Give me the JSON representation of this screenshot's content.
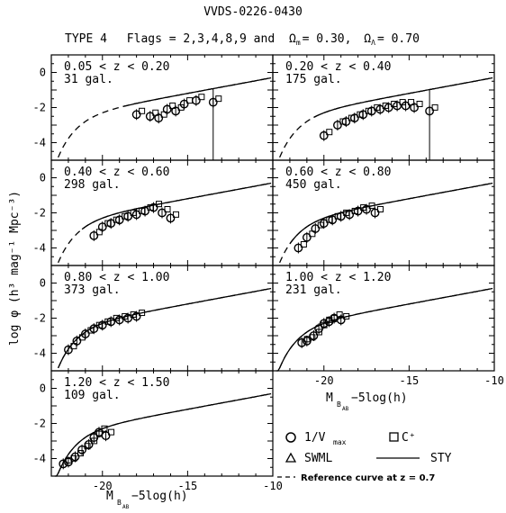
{
  "title": "VVDS-0226-0430",
  "subtitle": {
    "type_label": "TYPE 4",
    "flags_label": "Flags = 2,3,4,8,9  and",
    "omega_m_sym": "Ω",
    "omega_m_sub": "m",
    "omega_m_val": "= 0.30,",
    "omega_l_sym": "Ω",
    "omega_l_sub": "Λ",
    "omega_l_val": "= 0.70"
  },
  "ylabel": "log φ  (h³ mag⁻¹ Mpc⁻³)",
  "xlabel_left": {
    "main": "M",
    "sub1": "B",
    "sub2": "AB",
    "rest": "−5log(h)"
  },
  "xlabel_right": {
    "main": "M",
    "sub1": "B",
    "sub2": "AB",
    "rest": "−5log(h)"
  },
  "legend": {
    "vmax_label": "1/V",
    "vmax_sub": "max",
    "cplus_label": "C⁺",
    "swml_label": "SWML",
    "sty_label": "STY",
    "reference_label": "Reference curve at z = 0.7"
  },
  "chart_data": {
    "type": "scatter",
    "xlim": [
      -23,
      -10
    ],
    "ylim": [
      -5,
      1
    ],
    "xticks": [
      -20,
      -15,
      -10
    ],
    "yticks": [
      -4,
      -2,
      0
    ],
    "grid": false,
    "panels": [
      {
        "range": "0.05 < z < 0.20",
        "count": "31 gal.",
        "points": [
          [
            -18.0,
            -2.4
          ],
          [
            -17.2,
            -2.5
          ],
          [
            -16.7,
            -2.6
          ],
          [
            -16.2,
            -2.1
          ],
          [
            -15.7,
            -2.2
          ],
          [
            -15.2,
            -1.8
          ],
          [
            -14.5,
            -1.6
          ],
          [
            -13.5,
            -1.7
          ]
        ],
        "sty": {
          "phi": -2.2,
          "mstar": -20.8,
          "alpha": -1.45,
          "mcut": -18.8
        },
        "drop": -13.5
      },
      {
        "range": "0.20 < z < 0.40",
        "count": "175 gal.",
        "points": [
          [
            -20.0,
            -3.6
          ],
          [
            -19.2,
            -3.0
          ],
          [
            -18.7,
            -2.8
          ],
          [
            -18.2,
            -2.6
          ],
          [
            -17.7,
            -2.4
          ],
          [
            -17.2,
            -2.2
          ],
          [
            -16.7,
            -2.1
          ],
          [
            -16.2,
            -2.0
          ],
          [
            -15.7,
            -1.9
          ],
          [
            -15.2,
            -1.9
          ],
          [
            -14.7,
            -2.0
          ],
          [
            -13.8,
            -2.2
          ]
        ],
        "sty": {
          "phi": -2.2,
          "mstar": -20.8,
          "alpha": -1.45,
          "mcut": -20.6
        },
        "drop": -13.8
      },
      {
        "range": "0.40 < z < 0.60",
        "count": "298 gal.",
        "points": [
          [
            -20.5,
            -3.3
          ],
          [
            -20.0,
            -2.8
          ],
          [
            -19.5,
            -2.6
          ],
          [
            -19.0,
            -2.4
          ],
          [
            -18.5,
            -2.2
          ],
          [
            -18.0,
            -2.1
          ],
          [
            -17.5,
            -1.9
          ],
          [
            -17.0,
            -1.7
          ],
          [
            -16.5,
            -2.0
          ],
          [
            -16.0,
            -2.3
          ]
        ],
        "sty": {
          "phi": -2.2,
          "mstar": -20.8,
          "alpha": -1.45,
          "mcut": -21.2
        }
      },
      {
        "range": "0.60 < z < 0.80",
        "count": "450 gal.",
        "points": [
          [
            -21.5,
            -4.0
          ],
          [
            -21.0,
            -3.4
          ],
          [
            -20.5,
            -2.9
          ],
          [
            -20.0,
            -2.6
          ],
          [
            -19.5,
            -2.4
          ],
          [
            -19.0,
            -2.2
          ],
          [
            -18.5,
            -2.1
          ],
          [
            -18.0,
            -1.9
          ],
          [
            -17.5,
            -1.8
          ],
          [
            -17.0,
            -2.0
          ]
        ],
        "sty": {
          "phi": -2.2,
          "mstar": -20.8,
          "alpha": -1.45,
          "mcut": -22.0
        }
      },
      {
        "range": "0.80 < z < 1.00",
        "count": "373 gal.",
        "points": [
          [
            -22.0,
            -3.8
          ],
          [
            -21.5,
            -3.3
          ],
          [
            -21.0,
            -2.9
          ],
          [
            -20.5,
            -2.6
          ],
          [
            -20.0,
            -2.4
          ],
          [
            -19.5,
            -2.2
          ],
          [
            -19.0,
            -2.1
          ],
          [
            -18.5,
            -2.0
          ],
          [
            -18.0,
            -1.9
          ]
        ],
        "sty": {
          "phi": -2.2,
          "mstar": -20.8,
          "alpha": -1.45,
          "mcut": -22.6
        }
      },
      {
        "range": "1.00 < z < 1.20",
        "count": "231 gal.",
        "points": [
          [
            -21.3,
            -3.4
          ],
          [
            -21.0,
            -3.3
          ],
          [
            -20.6,
            -3.0
          ],
          [
            -20.3,
            -2.6
          ],
          [
            -20.0,
            -2.3
          ],
          [
            -19.7,
            -2.2
          ],
          [
            -19.4,
            -2.0
          ],
          [
            -19.0,
            -2.1
          ]
        ],
        "sty": {
          "phi": -2.2,
          "mstar": -20.8,
          "alpha": -1.45,
          "mcut": -22.8
        }
      },
      {
        "range": "1.20 < z < 1.50",
        "count": "109 gal.",
        "points": [
          [
            -22.3,
            -4.3
          ],
          [
            -22.0,
            -4.2
          ],
          [
            -21.6,
            -3.9
          ],
          [
            -21.2,
            -3.5
          ],
          [
            -20.8,
            -3.2
          ],
          [
            -20.5,
            -2.8
          ],
          [
            -20.2,
            -2.5
          ],
          [
            -19.8,
            -2.7
          ]
        ],
        "sty": {
          "phi": -2.2,
          "mstar": -20.8,
          "alpha": -1.45,
          "mcut": -22.8
        }
      }
    ],
    "reference": {
      "phi": -2.2,
      "mstar": -20.8,
      "alpha": -1.45
    }
  }
}
